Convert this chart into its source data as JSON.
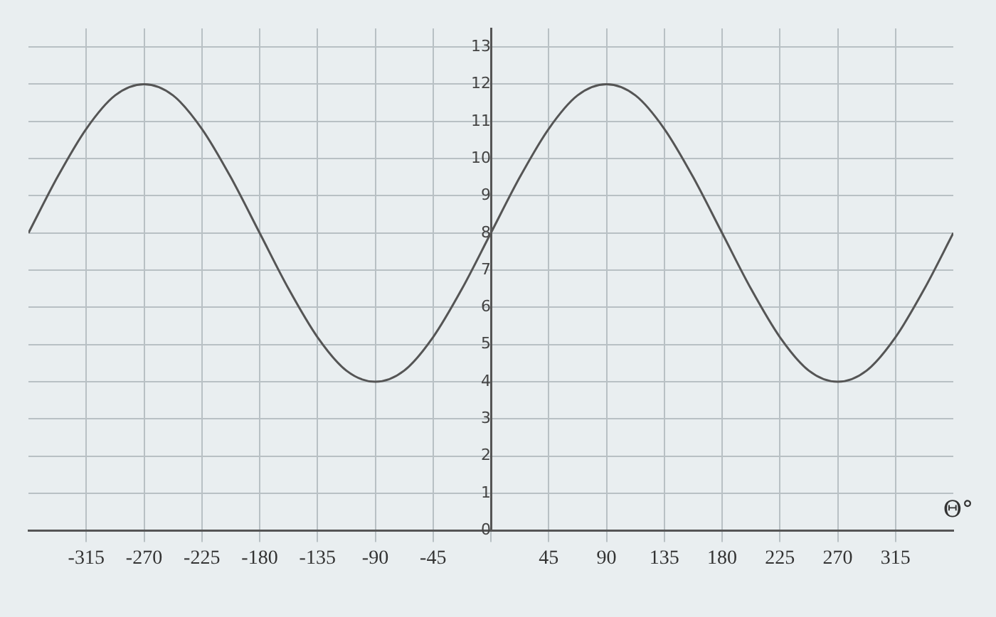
{
  "chart_data": {
    "type": "line",
    "xlabel": "Θ°",
    "x": [
      -360,
      -337.5,
      -315,
      -292.5,
      -270,
      -247.5,
      -225,
      -202.5,
      -180,
      -157.5,
      -135,
      -112.5,
      -90,
      -67.5,
      -45,
      -22.5,
      0,
      22.5,
      45,
      67.5,
      90,
      112.5,
      135,
      157.5,
      180,
      202.5,
      225,
      247.5,
      270,
      292.5,
      315,
      337.5,
      360
    ],
    "series": [
      {
        "color": "#555555",
        "values": [
          8,
          9.5,
          10.8,
          11.7,
          12,
          11.7,
          10.8,
          9.5,
          8,
          6.5,
          5.2,
          4.3,
          4,
          4.3,
          5.2,
          6.5,
          8,
          9.5,
          10.8,
          11.7,
          12,
          11.7,
          10.8,
          9.5,
          8,
          6.5,
          5.2,
          4.3,
          4,
          4.3,
          5.2,
          6.5,
          8
        ]
      }
    ],
    "xlim": [
      -360,
      360
    ],
    "ylim": [
      0,
      13.5
    ],
    "xticks": [
      -315,
      -270,
      -225,
      -180,
      -135,
      -90,
      -45,
      {
        "value": 0,
        "label": null
      },
      45,
      90,
      135,
      180,
      225,
      270,
      315
    ],
    "yticks": [
      0,
      1,
      2,
      3,
      4,
      5,
      6,
      7,
      8,
      9,
      10,
      11,
      12,
      13
    ],
    "grid": true,
    "marker": "none",
    "line_style": "solid"
  }
}
